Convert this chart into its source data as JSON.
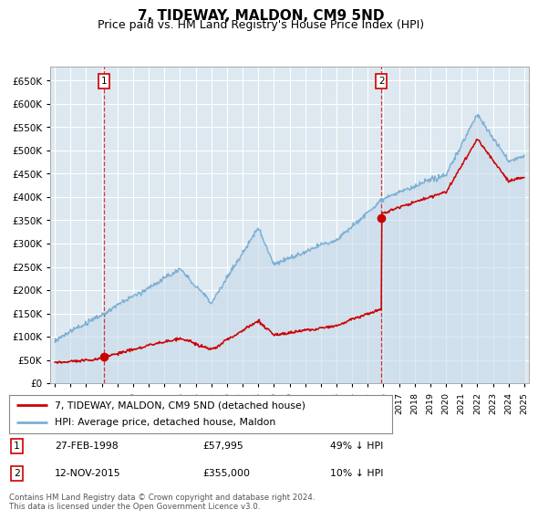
{
  "title": "7, TIDEWAY, MALDON, CM9 5ND",
  "subtitle": "Price paid vs. HM Land Registry's House Price Index (HPI)",
  "title_fontsize": 11,
  "subtitle_fontsize": 9,
  "background_color": "#ffffff",
  "grid_color": "#bbbbcc",
  "plot_bg": "#dde8f0",
  "red_color": "#cc0000",
  "blue_color": "#7bafd4",
  "blue_fill": "#c5d8ea",
  "purchase1_date": 1998.15,
  "purchase1_price": 57995,
  "purchase2_date": 2015.87,
  "purchase2_price": 355000,
  "yticks": [
    0,
    50000,
    100000,
    150000,
    200000,
    250000,
    300000,
    350000,
    400000,
    450000,
    500000,
    550000,
    600000,
    650000
  ],
  "xlim_left": 1994.7,
  "xlim_right": 2025.3,
  "ylim_top": 680000,
  "legend_entry1": "7, TIDEWAY, MALDON, CM9 5ND (detached house)",
  "legend_entry2": "HPI: Average price, detached house, Maldon",
  "annotation1_date": "27-FEB-1998",
  "annotation1_price": "£57,995",
  "annotation1_hpi": "49% ↓ HPI",
  "annotation2_date": "12-NOV-2015",
  "annotation2_price": "£355,000",
  "annotation2_hpi": "10% ↓ HPI",
  "footer": "Contains HM Land Registry data © Crown copyright and database right 2024.\nThis data is licensed under the Open Government Licence v3.0."
}
